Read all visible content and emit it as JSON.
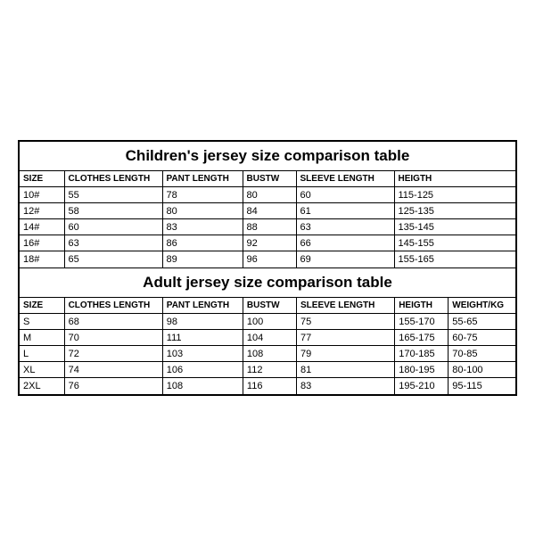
{
  "children": {
    "title": "Children's jersey size comparison table",
    "columns": [
      "SIZE",
      "CLOTHES LENGTH",
      "PANT LENGTH",
      "BUSTW",
      "SLEEVE LENGTH",
      "HEIGTH"
    ],
    "rows": [
      [
        "10#",
        "55",
        "78",
        "80",
        "60",
        "115-125"
      ],
      [
        "12#",
        "58",
        "80",
        "84",
        "61",
        "125-135"
      ],
      [
        "14#",
        "60",
        "83",
        "88",
        "63",
        "135-145"
      ],
      [
        "16#",
        "63",
        "86",
        "92",
        "66",
        "145-155"
      ],
      [
        "18#",
        "65",
        "89",
        "96",
        "69",
        "155-165"
      ]
    ]
  },
  "adult": {
    "title": "Adult jersey size comparison table",
    "columns": [
      "SIZE",
      "CLOTHES LENGTH",
      "PANT LENGTH",
      "BUSTW",
      "SLEEVE LENGTH",
      "HEIGTH",
      "WEIGHT/KG"
    ],
    "rows": [
      [
        "S",
        "68",
        "98",
        "100",
        "75",
        "155-170",
        "55-65"
      ],
      [
        "M",
        "70",
        "111",
        "104",
        "77",
        "165-175",
        "60-75"
      ],
      [
        "L",
        "72",
        "103",
        "108",
        "79",
        "170-185",
        "70-85"
      ],
      [
        "XL",
        "74",
        "106",
        "112",
        "81",
        "180-195",
        "80-100"
      ],
      [
        "2XL",
        "76",
        "108",
        "116",
        "83",
        "195-210",
        "95-115"
      ]
    ]
  }
}
